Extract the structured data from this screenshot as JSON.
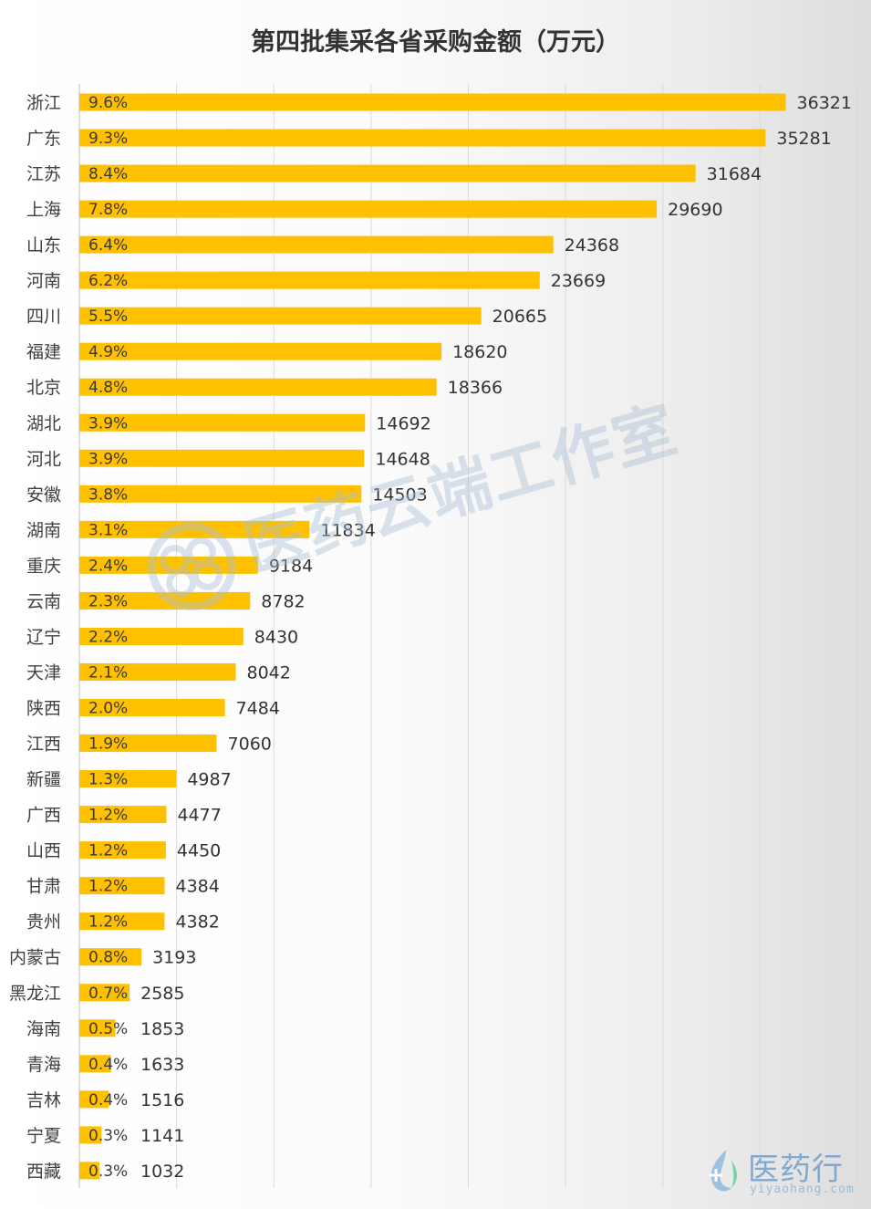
{
  "chart_data": {
    "type": "bar",
    "orientation": "horizontal",
    "title": "第四批集采各省采购金额（万元）",
    "xlim": [
      0,
      40000
    ],
    "grid": true,
    "bar_color": "#FFC000",
    "categories": [
      "浙江",
      "广东",
      "江苏",
      "上海",
      "山东",
      "河南",
      "四川",
      "福建",
      "北京",
      "湖北",
      "河北",
      "安徽",
      "湖南",
      "重庆",
      "云南",
      "辽宁",
      "天津",
      "陕西",
      "江西",
      "新疆",
      "广西",
      "山西",
      "甘肃",
      "贵州",
      "内蒙古",
      "黑龙江",
      "海南",
      "青海",
      "吉林",
      "宁夏",
      "西藏"
    ],
    "values": [
      36321,
      35281,
      31684,
      29690,
      24368,
      23669,
      20665,
      18620,
      18366,
      14692,
      14648,
      14503,
      11834,
      9184,
      8782,
      8430,
      8042,
      7484,
      7060,
      4987,
      4477,
      4450,
      4384,
      4382,
      3193,
      2585,
      1853,
      1633,
      1516,
      1141,
      1032
    ],
    "percent_labels": [
      "9.6%",
      "9.3%",
      "8.4%",
      "7.8%",
      "6.4%",
      "6.2%",
      "5.5%",
      "4.9%",
      "4.8%",
      "3.9%",
      "3.9%",
      "3.8%",
      "3.1%",
      "2.4%",
      "2.3%",
      "2.2%",
      "2.1%",
      "2.0%",
      "1.9%",
      "1.3%",
      "1.2%",
      "1.2%",
      "1.2%",
      "1.2%",
      "0.8%",
      "0.7%",
      "0.5%",
      "0.4%",
      "0.4%",
      "0.3%",
      "0.3%"
    ]
  },
  "watermark": {
    "text": "医药云端工作室",
    "icon": "cloud-swirl-logo",
    "color": "#a9bfd6"
  },
  "brand": {
    "name": "医药行",
    "url": "yiyaohang.com",
    "icon": "leaf-drop-logo",
    "color": "#7fa9cf"
  }
}
